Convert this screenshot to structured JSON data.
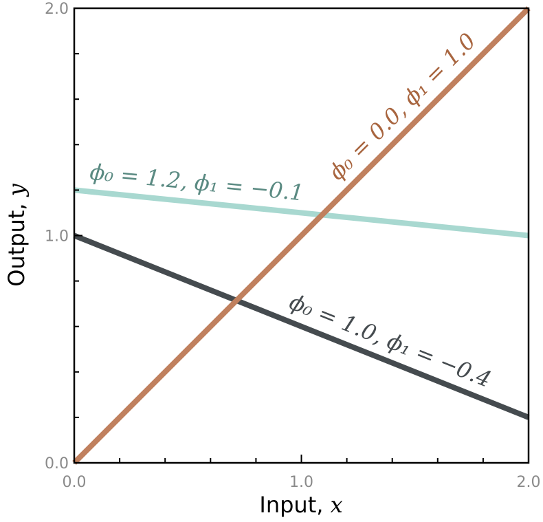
{
  "chart_data": {
    "type": "line",
    "title": "",
    "xlabel": "Input, ",
    "xlabel_var": "x",
    "ylabel": "Output, ",
    "ylabel_var": "y",
    "xlim": [
      0,
      2
    ],
    "ylim": [
      0,
      2
    ],
    "x_ticks": [
      {
        "value": 0,
        "label": "0.0"
      },
      {
        "value": 1,
        "label": "1.0"
      },
      {
        "value": 2,
        "label": "2.0"
      }
    ],
    "y_ticks": [
      {
        "value": 0,
        "label": "0.0"
      },
      {
        "value": 1,
        "label": "1.0"
      },
      {
        "value": 2,
        "label": "2.0"
      }
    ],
    "x_minor_step": 0.2,
    "y_minor_step": 0.2,
    "grid": false,
    "series": [
      {
        "label": "ϕ₀ = 1.2, ϕ₁ = −0.1",
        "intercept": 1.2,
        "slope": -0.1,
        "x": [
          0,
          2
        ],
        "y": [
          1.2,
          1.0
        ],
        "color": "#a8d8d0",
        "label_color": "#5a8a82"
      },
      {
        "label": "ϕ₀ = 1.0, ϕ₁ = −0.4",
        "intercept": 1.0,
        "slope": -0.4,
        "x": [
          0,
          2
        ],
        "y": [
          1.0,
          0.2
        ],
        "color": "#454b4f",
        "label_color": "#454b4f"
      },
      {
        "label": "ϕ₀ = 0.0, ϕ₁ = 1.0",
        "intercept": 0.0,
        "slope": 1.0,
        "x": [
          0,
          2
        ],
        "y": [
          0.0,
          2.0
        ],
        "color": "#c0805e",
        "label_color": "#a8653f"
      }
    ]
  }
}
